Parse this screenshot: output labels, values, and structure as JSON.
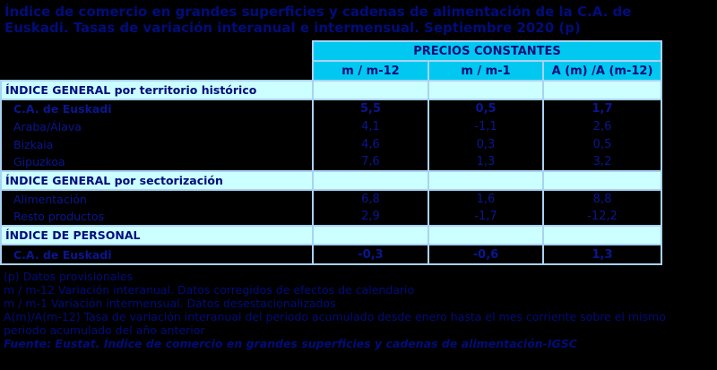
{
  "colors": {
    "background": "#000000",
    "header_cyan": "#00C8F0",
    "section_cyan": "#CCFFFF",
    "grid_line": "#A9D2F2",
    "title_navy": "#000D7B",
    "value_navy": "#0A1690"
  },
  "title": {
    "line1": "Índice de comercio en grandes superficies y cadenas de alimentación de la C.A. de",
    "line2": "Euskadi. Tasas de variación interanual e intermensual. Septiembre 2020 (p)"
  },
  "table": {
    "group_header": "PRECIOS CONSTANTES",
    "columns": [
      "m / m-12",
      "m / m-1",
      "A (m) /A (m-12)"
    ],
    "sections": [
      {
        "header": "ÍNDICE GENERAL por territorio histórico",
        "rows": [
          {
            "label": "C.A. de Euskadi",
            "bold": true,
            "values": [
              "5,5",
              "0,5",
              "1,7"
            ]
          },
          {
            "label": "Araba/Álava",
            "bold": false,
            "values": [
              "4,1",
              "-1,1",
              "2,6"
            ]
          },
          {
            "label": "Bizkaia",
            "bold": false,
            "values": [
              "4,6",
              "0,3",
              "0,5"
            ]
          },
          {
            "label": "Gipuzkoa",
            "bold": false,
            "values": [
              "7,6",
              "1,3",
              "3,2"
            ]
          }
        ]
      },
      {
        "header": "ÍNDICE GENERAL por sectorización",
        "rows": [
          {
            "label": "Alimentación",
            "bold": false,
            "values": [
              "6,8",
              "1,6",
              "8,8"
            ]
          },
          {
            "label": "Resto productos",
            "bold": false,
            "values": [
              "2,9",
              "-1,7",
              "-12,2"
            ]
          }
        ]
      },
      {
        "header": "ÍNDICE DE PERSONAL",
        "rows": [
          {
            "label": "C.A. de Euskadi",
            "bold": true,
            "values": [
              "-0,3",
              "-0,6",
              "1,3"
            ]
          }
        ]
      }
    ]
  },
  "footnotes": [
    "(p) Datos provisionales",
    "m / m-12 Variación interanual. Datos corregidos de efectos de calendario",
    "m / m-1 Variación intermensual. Datos desestacionalizados",
    "A(m)/A(m-12) Tasa de variación interanual del periodo acumulado desde enero hasta el mes corriente sobre el mismo periodo acumulado del año anterior"
  ],
  "source": "Fuente: Eustat. Índice de comercio en grandes superficies y cadenas de alimentación-IGSC"
}
